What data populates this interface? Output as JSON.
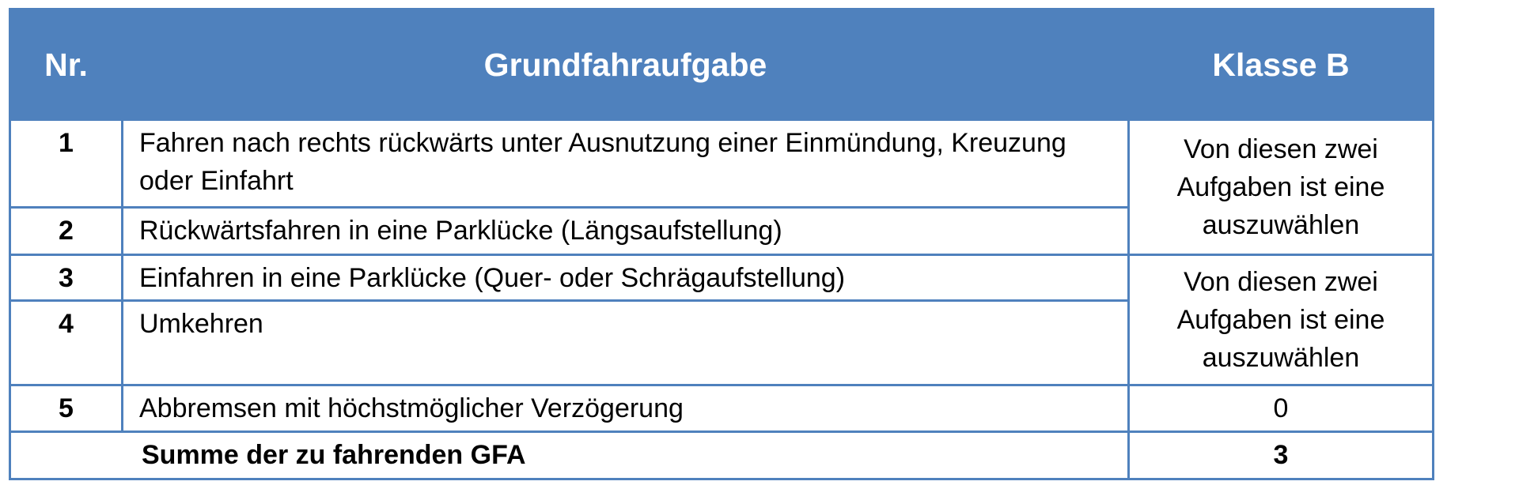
{
  "header": {
    "nr": "Nr.",
    "task": "Grundfahraufgabe",
    "class": "Klasse B"
  },
  "rows": [
    {
      "nr": "1",
      "task": "Fahren nach rechts rückwärts unter Ausnutzung einer Einmündung, Kreuzung oder Einfahrt"
    },
    {
      "nr": "2",
      "task": "Rückwärtsfahren in eine Parklücke (Längsaufstellung)"
    },
    {
      "nr": "3",
      "task": "Einfahren in eine Parklücke (Quer- oder Schrägaufstellung)"
    },
    {
      "nr": "4",
      "task": "Umkehren"
    },
    {
      "nr": "5",
      "task": "Abbremsen mit höchstmöglicher Verzögerung",
      "class": "0"
    }
  ],
  "groups": [
    {
      "class": "Von diesen zwei Aufgaben ist eine auszuwählen"
    },
    {
      "class": "Von diesen zwei Aufgaben ist eine auszuwählen"
    }
  ],
  "total": {
    "label": "Summe der zu fahrenden GFA",
    "value": "3"
  },
  "colors": {
    "header_bg": "#4f81bd",
    "border": "#4f81bd",
    "header_text": "#ffffff"
  }
}
